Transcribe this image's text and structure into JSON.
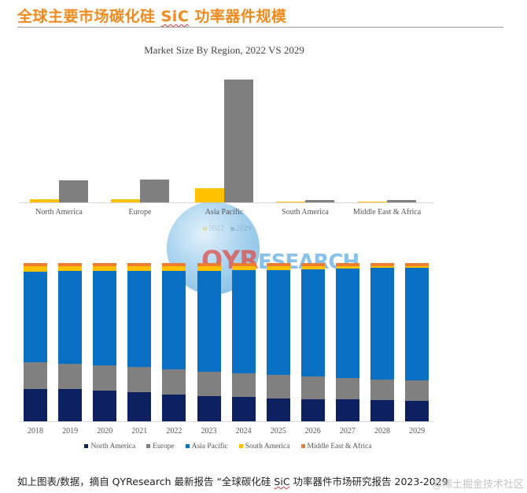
{
  "header": {
    "title_prefix": "全球主要市场碳化硅 ",
    "title_sic": "SiC",
    "title_suffix": " 功率器件规模"
  },
  "watermark": {
    "brand_a": "QYR",
    "brand_b": "ESEARCH"
  },
  "footer": {
    "caption_prefix": "如上图表/数据，摘自 QYResearch 最新报告 “全球碳化硅 ",
    "caption_sic": "SiC",
    "caption_suffix": " 功率器件市场研究报告 2023-2029",
    "source_mark": "@稀土掘金技术社区"
  },
  "colors": {
    "title": "#f08a1c",
    "y2022": "#ffc000",
    "y2029": "#7f7f7f",
    "north_america": "#0d2060",
    "europe": "#808080",
    "asia_pacific": "#0a70c4",
    "south_america": "#ffc000",
    "middle_east_africa": "#ed7d31"
  },
  "chart_data": [
    {
      "type": "bar",
      "title": "Market Size By Region, 2022 VS 2029",
      "xlabel": "",
      "ylabel": "",
      "grid": false,
      "legend_position": "bottom",
      "categories": [
        "North America",
        "Europe",
        "Asia Pacific",
        "South America",
        "Middle East & Africa"
      ],
      "series": [
        {
          "name": "2022",
          "values": [
            4,
            4,
            18,
            1,
            1
          ]
        },
        {
          "name": "2029",
          "values": [
            28,
            29,
            156,
            3,
            3
          ]
        }
      ],
      "note": "relative heights in pixels; no axis ticks shown"
    },
    {
      "type": "bar",
      "stacked": true,
      "percent": true,
      "title": "",
      "xlabel": "",
      "ylabel": "",
      "grid": false,
      "legend_position": "bottom",
      "ylim": [
        0,
        100
      ],
      "categories": [
        "2018",
        "2019",
        "2020",
        "2021",
        "2022",
        "2023",
        "2024",
        "2025",
        "2026",
        "2027",
        "2028",
        "2029"
      ],
      "series": [
        {
          "name": "North America",
          "values": [
            20.4,
            20.4,
            19.4,
            18.4,
            16.9,
            15.9,
            15.4,
            14.4,
            13.9,
            13.9,
            13.4,
            12.9
          ]
        },
        {
          "name": "Europe",
          "values": [
            16.9,
            15.9,
            15.9,
            15.9,
            15.9,
            15.4,
            14.9,
            14.9,
            14.4,
            13.4,
            12.9,
            12.9
          ]
        },
        {
          "name": "Asia Pacific",
          "values": [
            57.2,
            58.7,
            59.7,
            60.7,
            62.2,
            63.7,
            65.2,
            66.2,
            67.7,
            69.2,
            70.6,
            71.1
          ]
        },
        {
          "name": "South America",
          "values": [
            3.5,
            3.0,
            3.0,
            3.0,
            3.0,
            3.0,
            2.5,
            2.5,
            2.0,
            1.5,
            1.1,
            1.1
          ]
        },
        {
          "name": "Middle East & Africa",
          "values": [
            2.0,
            2.0,
            2.0,
            2.0,
            2.0,
            2.0,
            2.0,
            2.0,
            2.0,
            2.0,
            2.0,
            2.0
          ]
        }
      ]
    }
  ]
}
